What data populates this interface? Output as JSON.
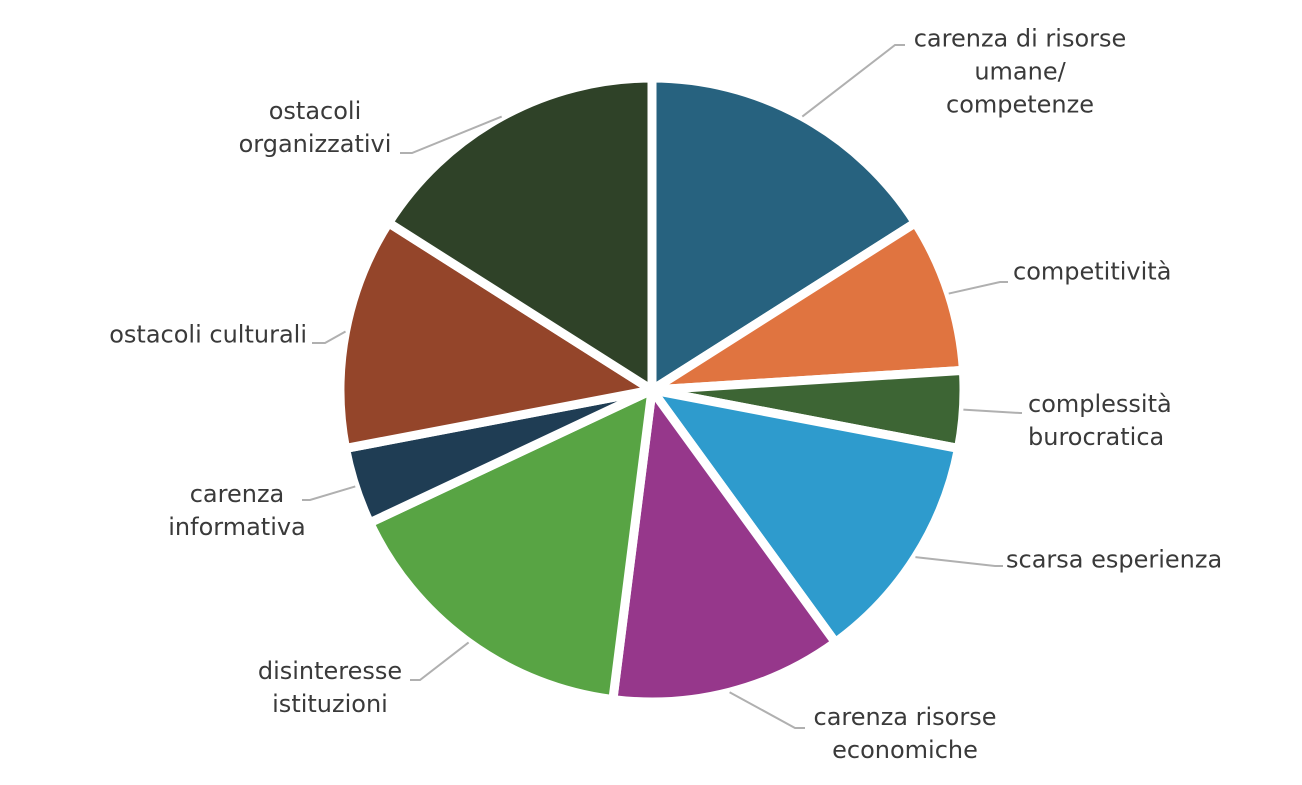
{
  "chart_data": {
    "type": "pie",
    "categories": [
      "carenza di risorse\numane/\ncompetenze",
      "competitività",
      "complessità\nburocratica",
      "scarsa esperienza",
      "carenza risorse\neconomiche",
      "disinteresse\nistituzioni",
      "carenza\ninformativa",
      "ostacoli culturali",
      "ostacoli\norganizzativi"
    ],
    "values": [
      16,
      8,
      4,
      12,
      12,
      16,
      4,
      12,
      16
    ],
    "colors": [
      "#27627f",
      "#e07440",
      "#3d6534",
      "#2e9bcd",
      "#96378b",
      "#58a444",
      "#1f3d54",
      "#94452a",
      "#2f4228"
    ]
  }
}
